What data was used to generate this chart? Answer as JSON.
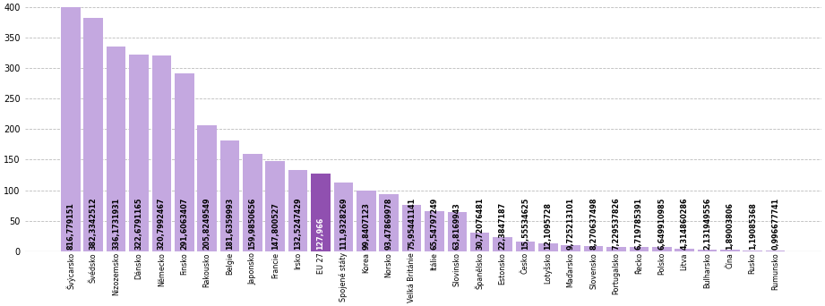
{
  "categories": [
    "Švýcarsko",
    "Švédsko",
    "Nizozemsko",
    "Dánsko",
    "Německo",
    "Finsko",
    "Rakousko",
    "Belgie",
    "Japonsko",
    "Francie",
    "Irsko",
    "EU 27",
    "Spojené státy",
    "Korea",
    "Norsko",
    "Velká Británie",
    "Itálie",
    "Slovinsko",
    "Španělsko",
    "Estonsko",
    "Česko",
    "Lotyšsko",
    "Maďarsko",
    "Slovensko",
    "Portugalsko",
    "Řecko",
    "Polsko",
    "Litva",
    "Bulharsko",
    "Čína",
    "Rusko",
    "Rumunsko"
  ],
  "values": [
    816.779151,
    382.3342512,
    336.1731931,
    322.6791165,
    320.7992467,
    291.6063407,
    205.8249549,
    181.6359993,
    159.9850656,
    147.800527,
    132.5247429,
    127.966,
    111.9328269,
    99.8407123,
    93.47869978,
    75.95441141,
    65.54797249,
    63.8169943,
    30.72076481,
    22.3847187,
    15.55534625,
    12.1095728,
    9.725213101,
    8.270637498,
    7.229537826,
    6.719785391,
    6.649910985,
    4.314860286,
    2.131949556,
    1.89003806,
    1.19085368,
    0.996677741
  ],
  "value_labels": [
    "816,779151",
    "382,3342512",
    "336,1731931",
    "322,6791165",
    "320,7992467",
    "291,6063407",
    "205,8249549",
    "181,6359993",
    "159,9850656",
    "147,800527",
    "132,5247429",
    "127,966",
    "111,9328269",
    "99,8407123",
    "93,47869978",
    "75,95441141",
    "65,54797249",
    "63,8169943",
    "30,72076481",
    "22,3847187",
    "15,55534625",
    "12,1095728",
    "9,725213101",
    "8,270637498",
    "7,229537826",
    "6,719785391",
    "6,649910985",
    "4,314860286",
    "2,131949556",
    "1,89003806",
    "1,19085368",
    "0,996677741"
  ],
  "bar_color_default": "#c4a8e0",
  "bar_color_highlight": "#9050b0",
  "highlight_index": 11,
  "highlight_label_color": "#ffffff",
  "default_label_color": "#000000",
  "ylim": [
    0,
    400
  ],
  "yticks": [
    0,
    50,
    100,
    150,
    200,
    250,
    300,
    350,
    400
  ],
  "grid_color": "#bbbbbb",
  "background_color": "#ffffff",
  "value_fontsize": 5.8,
  "xtick_fontsize": 5.8,
  "ytick_fontsize": 7.0
}
